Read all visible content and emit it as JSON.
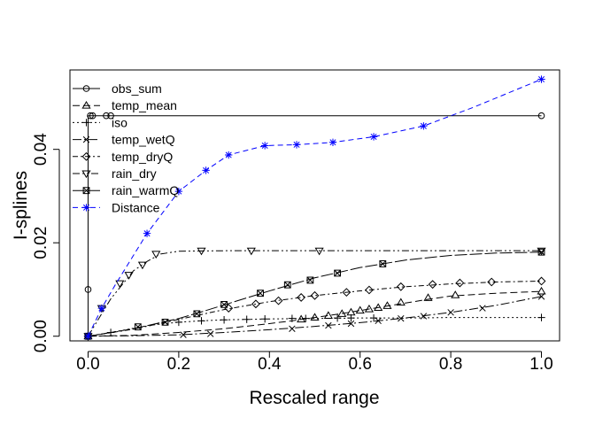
{
  "chart_data": {
    "type": "line",
    "xlabel": "Rescaled range",
    "ylabel": "I-splines",
    "xlim": [
      -0.04,
      1.04
    ],
    "ylim": [
      -0.001,
      0.057
    ],
    "x_ticks": [
      "0.0",
      "0.2",
      "0.4",
      "0.6",
      "0.8",
      "1.0"
    ],
    "y_ticks": [
      "0.00",
      "0.02",
      "0.04"
    ],
    "grid": false,
    "legend_position": "top-left",
    "series": [
      {
        "name": "obs_sum",
        "color": "#000000",
        "dash": "none",
        "marker": "circle",
        "x": [
          0,
          0,
          0,
          0.005,
          0.01,
          0.04,
          0.05,
          0.1,
          0.2,
          0.4,
          0.6,
          0.8,
          1.0
        ],
        "y": [
          0,
          0.01,
          0.0472,
          0.0472,
          0.0472,
          0.0472,
          0.0472,
          0.0472,
          0.0472,
          0.0472,
          0.0472,
          0.0472,
          0.0472
        ],
        "marker_x": [
          0,
          0,
          0.005,
          0.01,
          0.04,
          0.05,
          1.0
        ],
        "marker_y": [
          0,
          0.01,
          0.0472,
          0.0472,
          0.0472,
          0.0472,
          0.0472
        ]
      },
      {
        "name": "temp_mean",
        "color": "#000000",
        "dash": "8,4",
        "marker": "triangle-up",
        "x": [
          0,
          0.1,
          0.2,
          0.3,
          0.4,
          0.45,
          0.5,
          0.55,
          0.6,
          0.65,
          0.7,
          0.75,
          0.8,
          0.9,
          1.0
        ],
        "y": [
          0,
          0.0002,
          0.0008,
          0.0016,
          0.0027,
          0.0033,
          0.004,
          0.0047,
          0.0055,
          0.0063,
          0.0071,
          0.0079,
          0.0086,
          0.0092,
          0.0096
        ],
        "marker_x": [
          0,
          0.47,
          0.5,
          0.53,
          0.56,
          0.58,
          0.6,
          0.62,
          0.64,
          0.66,
          0.69,
          0.75,
          0.81,
          1.0
        ],
        "marker_y": [
          0,
          0.0036,
          0.004,
          0.0044,
          0.0048,
          0.0051,
          0.0055,
          0.0058,
          0.0061,
          0.0065,
          0.0072,
          0.0082,
          0.0088,
          0.0096
        ]
      },
      {
        "name": "iso",
        "color": "#000000",
        "dash": "2,3",
        "marker": "plus",
        "x": [
          0,
          0.05,
          0.1,
          0.15,
          0.2,
          0.25,
          0.3,
          0.35,
          0.4,
          0.5,
          0.6,
          0.7,
          0.8,
          1.0
        ],
        "y": [
          0,
          0.0008,
          0.0017,
          0.0025,
          0.003,
          0.0033,
          0.0035,
          0.0036,
          0.0037,
          0.0038,
          0.0039,
          0.0039,
          0.004,
          0.004
        ],
        "marker_x": [
          0,
          0.05,
          0.2,
          0.25,
          0.3,
          0.35,
          0.39,
          0.45,
          0.48,
          0.55,
          0.58,
          0.63,
          1.0
        ],
        "marker_y": [
          0,
          0.0008,
          0.003,
          0.0033,
          0.0035,
          0.0036,
          0.0037,
          0.0038,
          0.0038,
          0.0039,
          0.0039,
          0.0039,
          0.004
        ]
      },
      {
        "name": "temp_wetQ",
        "color": "#000000",
        "dash": "10,3,2,3",
        "marker": "x",
        "x": [
          0,
          0.1,
          0.2,
          0.3,
          0.4,
          0.5,
          0.6,
          0.7,
          0.8,
          0.9,
          1.0
        ],
        "y": [
          0,
          0.0001,
          0.0003,
          0.0008,
          0.0014,
          0.0021,
          0.0029,
          0.0039,
          0.0051,
          0.0066,
          0.0085
        ],
        "marker_x": [
          0,
          0.21,
          0.27,
          0.45,
          0.53,
          0.58,
          0.64,
          0.69,
          0.74,
          0.8,
          0.87,
          1.0
        ],
        "marker_y": [
          0,
          0.0003,
          0.0005,
          0.0016,
          0.0023,
          0.0027,
          0.0033,
          0.0038,
          0.0043,
          0.0051,
          0.006,
          0.0085
        ]
      },
      {
        "name": "temp_dryQ",
        "color": "#000000",
        "dash": "6,3,2,3",
        "marker": "diamond",
        "x": [
          0,
          0.1,
          0.2,
          0.3,
          0.4,
          0.5,
          0.6,
          0.7,
          0.8,
          0.9,
          1.0
        ],
        "y": [
          0,
          0.0015,
          0.0036,
          0.0057,
          0.0074,
          0.0087,
          0.0097,
          0.0106,
          0.0112,
          0.0116,
          0.0118
        ],
        "marker_x": [
          0,
          0.31,
          0.37,
          0.42,
          0.47,
          0.5,
          0.57,
          0.62,
          0.69,
          0.76,
          0.82,
          0.89,
          1.0
        ],
        "marker_y": [
          0,
          0.006,
          0.0069,
          0.0076,
          0.0083,
          0.0087,
          0.0094,
          0.0099,
          0.0106,
          0.0111,
          0.0114,
          0.0116,
          0.0118
        ]
      },
      {
        "name": "rain_dry",
        "color": "#000000",
        "dash": "8,3,2,3,2,3",
        "marker": "triangle-down",
        "x": [
          0,
          0.05,
          0.1,
          0.13,
          0.16,
          0.2,
          0.3,
          0.5,
          1.0
        ],
        "y": [
          0,
          0.008,
          0.014,
          0.016,
          0.0176,
          0.0182,
          0.0183,
          0.0183,
          0.0183
        ],
        "marker_x": [
          0,
          0.03,
          0.07,
          0.09,
          0.12,
          0.15,
          0.25,
          0.36,
          0.51,
          1.0
        ],
        "marker_y": [
          0,
          0.006,
          0.0113,
          0.0131,
          0.0153,
          0.0176,
          0.0183,
          0.0183,
          0.0183,
          0.0183
        ]
      },
      {
        "name": "rain_warmQ",
        "color": "#000000",
        "dash": "14,3",
        "marker": "square-x",
        "x": [
          0,
          0.05,
          0.1,
          0.15,
          0.2,
          0.25,
          0.3,
          0.35,
          0.4,
          0.45,
          0.5,
          0.55,
          0.6,
          0.7,
          0.8,
          0.9,
          1.0
        ],
        "y": [
          0,
          0.0008,
          0.0016,
          0.0027,
          0.0038,
          0.0052,
          0.0067,
          0.0082,
          0.0097,
          0.0111,
          0.0125,
          0.0136,
          0.0147,
          0.0163,
          0.0173,
          0.0178,
          0.018
        ],
        "marker_x": [
          0,
          0.11,
          0.17,
          0.24,
          0.3,
          0.38,
          0.44,
          0.49,
          0.55,
          0.65,
          1.0
        ],
        "marker_y": [
          0,
          0.002,
          0.003,
          0.0048,
          0.0068,
          0.0092,
          0.011,
          0.012,
          0.0135,
          0.0155,
          0.018
        ]
      },
      {
        "name": "Distance",
        "color": "#0000ff",
        "dash": "6,4",
        "marker": "asterisk",
        "x": [
          0,
          0.03,
          0.06,
          0.13,
          0.2,
          0.26,
          0.31,
          0.39,
          0.46,
          0.54,
          0.63,
          0.74,
          0.85,
          1.0
        ],
        "y": [
          0,
          0.006,
          0.011,
          0.022,
          0.031,
          0.0355,
          0.0388,
          0.0408,
          0.041,
          0.0415,
          0.0427,
          0.045,
          0.049,
          0.055
        ],
        "marker_x": [
          0,
          0.03,
          0.13,
          0.2,
          0.26,
          0.31,
          0.39,
          0.46,
          0.54,
          0.63,
          0.74,
          1.0
        ],
        "marker_y": [
          0,
          0.006,
          0.022,
          0.031,
          0.0355,
          0.0388,
          0.0408,
          0.041,
          0.0415,
          0.0427,
          0.045,
          0.055
        ]
      }
    ]
  }
}
